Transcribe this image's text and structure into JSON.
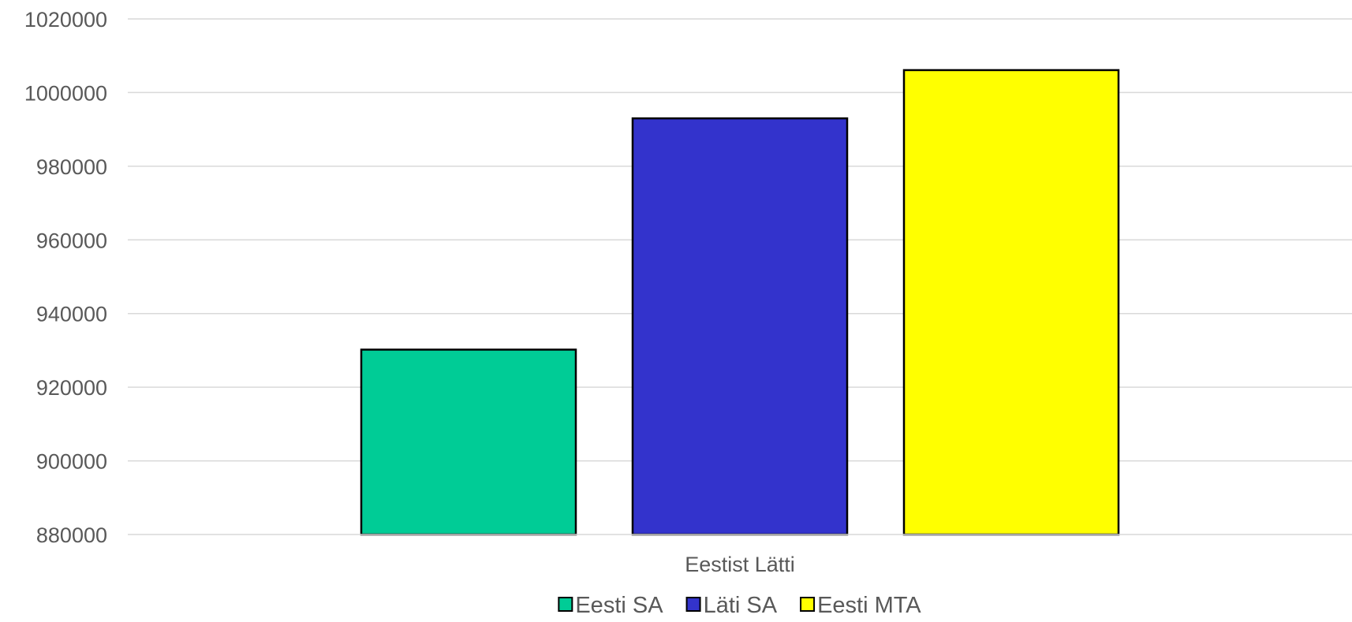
{
  "chart_data": {
    "type": "bar",
    "categories": [
      "Eestist Lätti"
    ],
    "series": [
      {
        "name": "Eesti SA",
        "values": [
          930200
        ],
        "color": "#00CC96"
      },
      {
        "name": "Läti SA",
        "values": [
          993000
        ],
        "color": "#3333CC"
      },
      {
        "name": "Eesti MTA",
        "values": [
          1006100
        ],
        "color": "#FFFF00"
      }
    ],
    "ylim": [
      880000,
      1020000
    ],
    "yticks": [
      "880000",
      "900000",
      "920000",
      "940000",
      "960000",
      "980000",
      "1000000",
      "1020000"
    ],
    "grid": true,
    "legend_position": "bottom",
    "bar_outline_color": "#000000",
    "gridline_color": "#D9D9D9"
  }
}
